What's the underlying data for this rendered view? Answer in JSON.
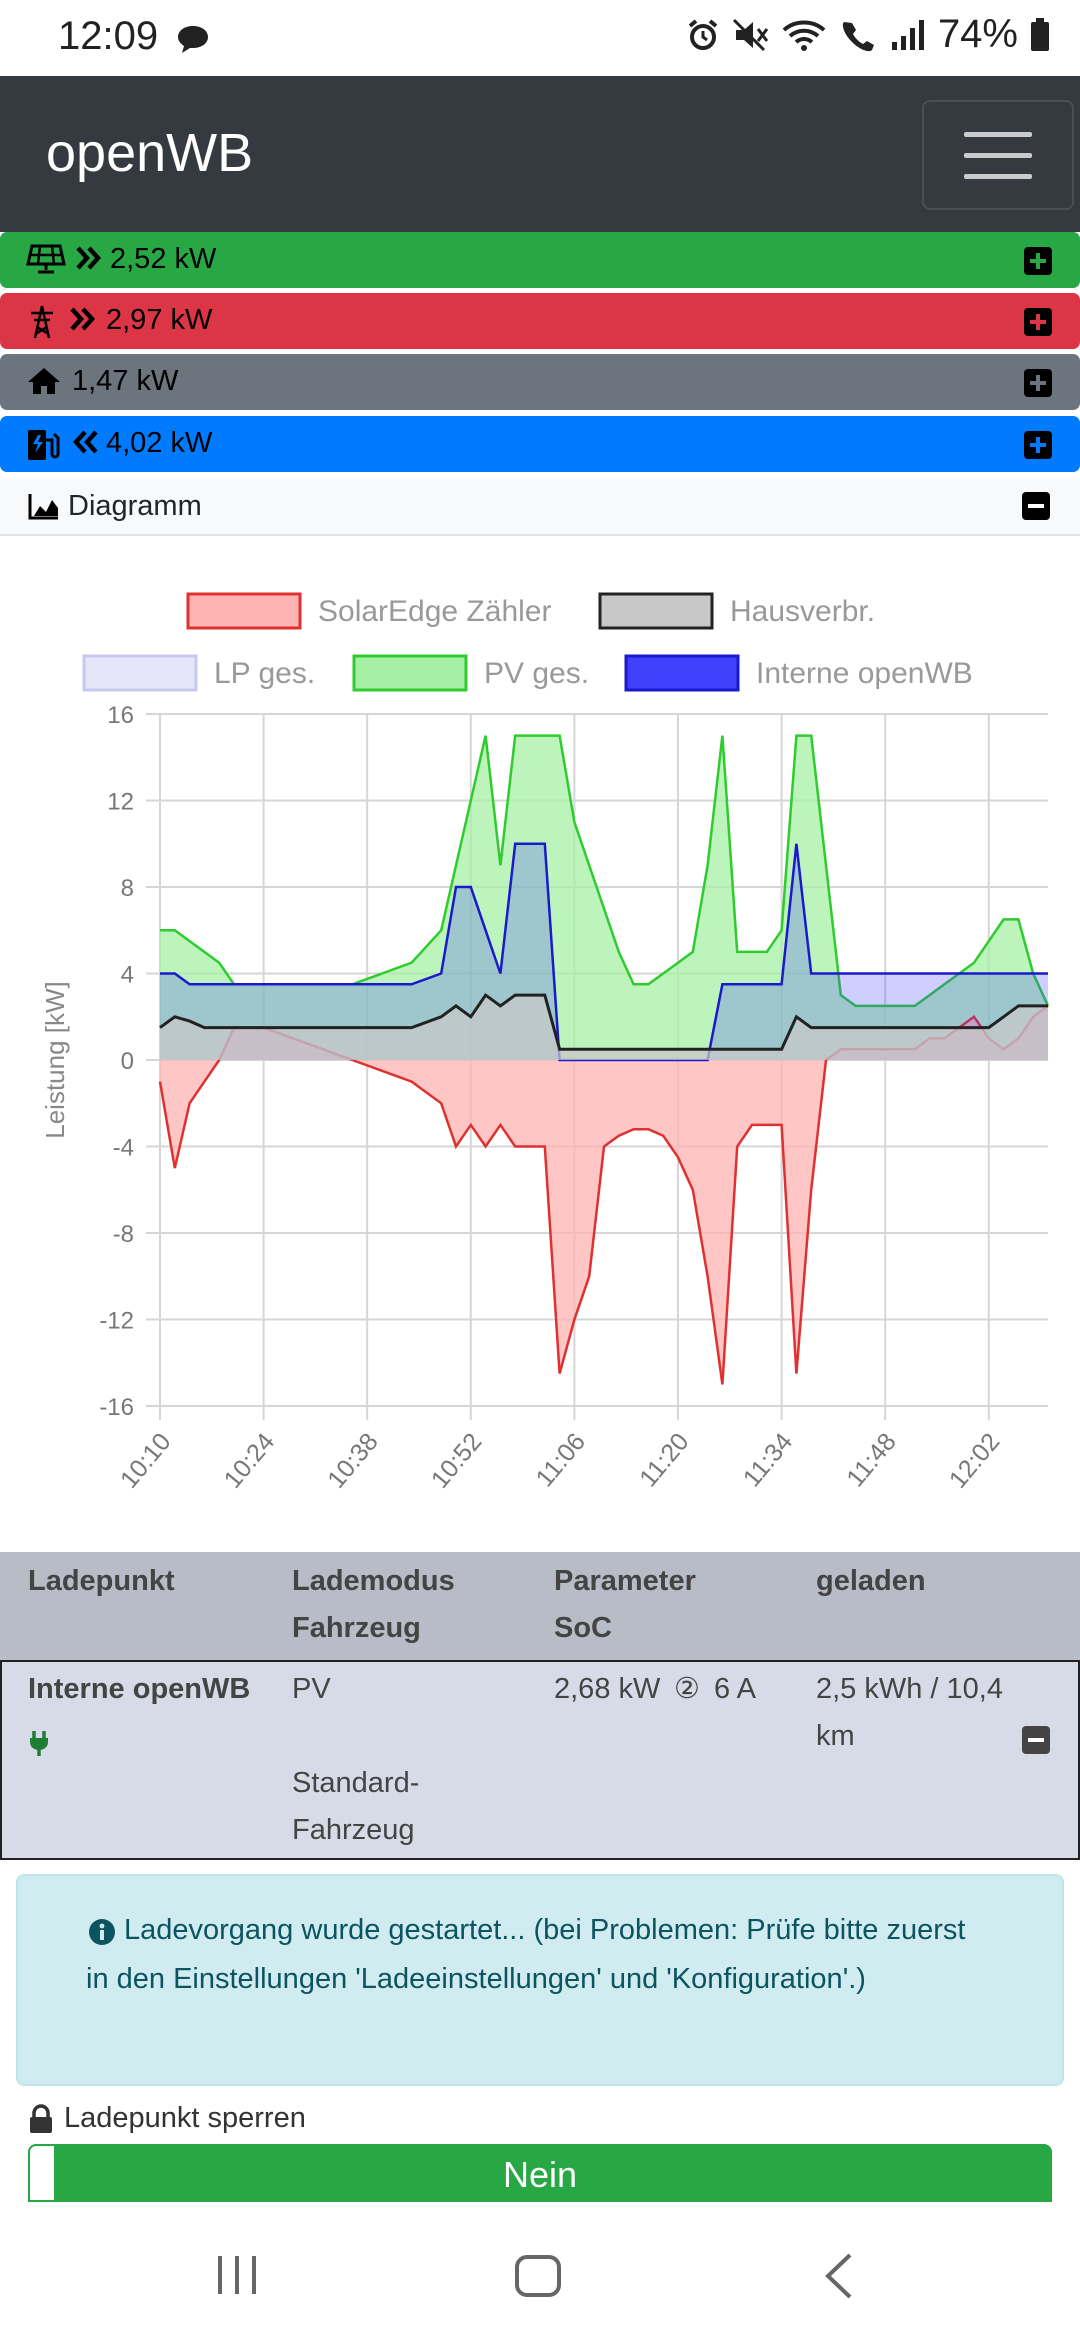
{
  "status_bar": {
    "time": "12:09",
    "battery": "74%"
  },
  "navbar": {
    "brand": "openWB"
  },
  "power_bars": [
    {
      "id": "pv",
      "value": "2,52 kW",
      "color": "#28a745",
      "icon": "solar-panel-icon",
      "arrow": "angle-double-right-icon"
    },
    {
      "id": "grid",
      "value": "2,97 kW",
      "color": "#dc3545",
      "icon": "power-tower-icon",
      "arrow": "angle-double-right-icon"
    },
    {
      "id": "house",
      "value": "1,47 kW",
      "color": "#6c757d",
      "icon": "home-icon"
    },
    {
      "id": "charge",
      "value": "4,02 kW",
      "color": "#007bff",
      "icon": "charging-station-icon",
      "arrow": "angle-double-left-icon"
    }
  ],
  "diagram": {
    "label": "Diagramm"
  },
  "chart_data": {
    "type": "area",
    "ylabel": "Leistung [kW]",
    "ylim": [
      -16,
      16
    ],
    "yticks": [
      "16",
      "12",
      "8",
      "4",
      "0",
      "-4",
      "-8",
      "-12",
      "-16"
    ],
    "xticks": [
      "10:10",
      "10:24",
      "10:38",
      "10:52",
      "11:06",
      "11:20",
      "11:34",
      "11:48",
      "12:02"
    ],
    "legend": [
      {
        "name": "SolarEdge Zähler",
        "fill": "#ffb3b3",
        "stroke": "#e03131"
      },
      {
        "name": "Hausverbr.",
        "fill": "#c8c8c8",
        "stroke": "#222222"
      },
      {
        "name": "LP ges.",
        "fill": "#e6e6fa",
        "stroke": "#c8c8f0"
      },
      {
        "name": "PV ges.",
        "fill": "#a6f0a6",
        "stroke": "#2ecc2e"
      },
      {
        "name": "Interne openWB",
        "fill": "#4040ff",
        "stroke": "#1a1acc"
      }
    ],
    "x_minutes": [
      0,
      2,
      4,
      6,
      8,
      10,
      14,
      18,
      22,
      26,
      30,
      34,
      38,
      40,
      42,
      44,
      46,
      48,
      50,
      52,
      54,
      56,
      58,
      60,
      62,
      64,
      66,
      68,
      70,
      72,
      74,
      76,
      78,
      80,
      82,
      84,
      86,
      88,
      90,
      92,
      94,
      96,
      98,
      100,
      102,
      104,
      106,
      108,
      110,
      112,
      114,
      116,
      118,
      120
    ],
    "series": [
      {
        "name": "PV ges.",
        "values": [
          6,
          6,
          5.5,
          5,
          4.5,
          3.5,
          3.5,
          3.5,
          3.5,
          3.5,
          4,
          4.5,
          6,
          9,
          12,
          15,
          9,
          15,
          15,
          15,
          15,
          11,
          9,
          7,
          5,
          3.5,
          3.5,
          4,
          4.5,
          5,
          9,
          15,
          5,
          5,
          5,
          6,
          15,
          15,
          9,
          3,
          2.5,
          2.5,
          2.5,
          2.5,
          2.5,
          3,
          3.5,
          4,
          4.5,
          5.5,
          6.5,
          6.5,
          4,
          2.5
        ]
      },
      {
        "name": "SolarEdge Zähler",
        "values": [
          -1,
          -5,
          -2,
          -1,
          0,
          1.5,
          1.5,
          1,
          0.5,
          0,
          -0.5,
          -1,
          -2,
          -4,
          -3,
          -4,
          -3,
          -4,
          -4,
          -4,
          -14.5,
          -12,
          -10,
          -4,
          -3.5,
          -3.2,
          -3.2,
          -3.5,
          -4.5,
          -6,
          -10,
          -15,
          -4,
          -3,
          -3,
          -3,
          -14.5,
          -6,
          0,
          0.5,
          0.5,
          0.5,
          0.5,
          0.5,
          0.5,
          1,
          1,
          1.5,
          2,
          1,
          0.5,
          1,
          2,
          2.5
        ]
      },
      {
        "name": "Hausverbr.",
        "values": [
          1.5,
          2,
          1.8,
          1.5,
          1.5,
          1.5,
          1.5,
          1.5,
          1.5,
          1.5,
          1.5,
          1.5,
          2,
          2.5,
          2,
          3,
          2.5,
          3,
          3,
          3,
          0.5,
          0.5,
          0.5,
          0.5,
          0.5,
          0.5,
          0.5,
          0.5,
          0.5,
          0.5,
          0.5,
          0.5,
          0.5,
          0.5,
          0.5,
          0.5,
          2,
          1.5,
          1.5,
          1.5,
          1.5,
          1.5,
          1.5,
          1.5,
          1.5,
          1.5,
          1.5,
          1.5,
          1.5,
          1.5,
          2,
          2.5,
          2.5,
          2.5
        ]
      },
      {
        "name": "Interne openWB",
        "values": [
          4,
          4,
          3.5,
          3.5,
          3.5,
          3.5,
          3.5,
          3.5,
          3.5,
          3.5,
          3.5,
          3.5,
          4,
          8,
          8,
          6,
          4,
          10,
          10,
          10,
          0,
          0,
          0,
          0,
          0,
          0,
          0,
          0,
          0,
          0,
          0,
          3.5,
          3.5,
          3.5,
          3.5,
          3.5,
          10,
          4,
          4,
          4,
          4,
          4,
          4,
          4,
          4,
          4,
          4,
          4,
          4,
          4,
          4,
          4,
          4,
          4
        ]
      }
    ]
  },
  "table": {
    "headers": {
      "col1": "Ladepunkt",
      "col2a": "Lademodus",
      "col2b": "Fahrzeug",
      "col3a": "Parameter",
      "col3b": "SoC",
      "col4": "geladen"
    },
    "row": {
      "name": "Interne openWB",
      "mode": "PV",
      "vehicle": "Standard-Fahrzeug",
      "vehicle_line1": "Standard-",
      "vehicle_line2": "Fahrzeug",
      "power": "2,68 kW",
      "phases": "②",
      "current": "6 A",
      "charged_line1": "2,5 kWh / 10,4",
      "charged_line2": "km"
    }
  },
  "info": {
    "message": "Ladevorgang wurde gestartet... (bei Problemen: Prüfe bitte zuerst in den Einstellungen 'Ladeeinstellungen' und 'Konfiguration'.)"
  },
  "lock": {
    "label": "Ladepunkt sperren",
    "button": "Nein"
  }
}
